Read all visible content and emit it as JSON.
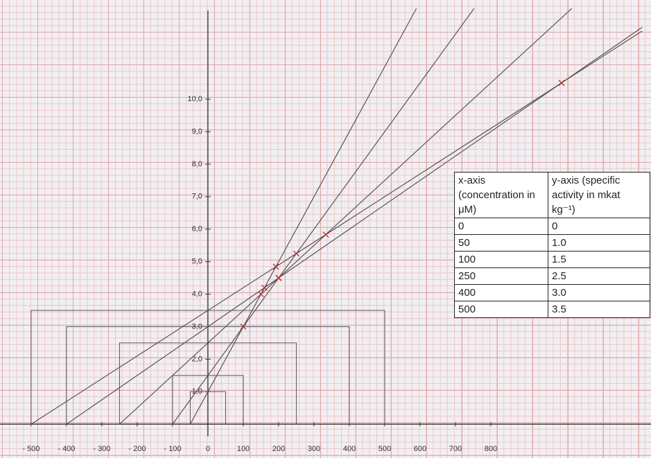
{
  "chart_data": {
    "type": "direct-linear",
    "x": [
      0,
      50,
      100,
      250,
      400,
      500
    ],
    "values": [
      0,
      1,
      1.5,
      2.5,
      3,
      3.5
    ],
    "value_labels": [
      "0",
      "1.0",
      "1.5",
      "2.5",
      "3.0",
      "3.5"
    ],
    "table_headers": [
      "x-axis (concentration in μM)",
      "y-axis (specific activity in mkat kg⁻¹)"
    ],
    "xlim": [
      -588,
      1253
    ],
    "ylim": [
      -1.04,
      13.05
    ],
    "xticks": [
      {
        "value": -500,
        "label": "- 500"
      },
      {
        "value": -400,
        "label": "- 400"
      },
      {
        "value": -300,
        "label": "- 300"
      },
      {
        "value": -200,
        "label": "- 200"
      },
      {
        "value": -100,
        "label": "- 100"
      },
      0,
      100,
      200,
      300,
      400,
      500,
      600,
      700,
      800
    ],
    "yticks": [
      {
        "value": 1,
        "label": "1,0"
      },
      {
        "value": 2,
        "label": "2,0"
      },
      {
        "value": 3,
        "label": "3,0"
      },
      {
        "value": 4,
        "label": "4,0"
      },
      {
        "value": 5,
        "label": "5,0"
      },
      {
        "value": 6,
        "label": "6,0"
      },
      {
        "value": 7,
        "label": "7,0"
      },
      {
        "value": 8,
        "label": "8,0"
      },
      {
        "value": 9,
        "label": "9,0"
      },
      {
        "value": 10,
        "label": "10,0"
      }
    ],
    "color": "#555555",
    "marker_color": "#b0302a"
  }
}
